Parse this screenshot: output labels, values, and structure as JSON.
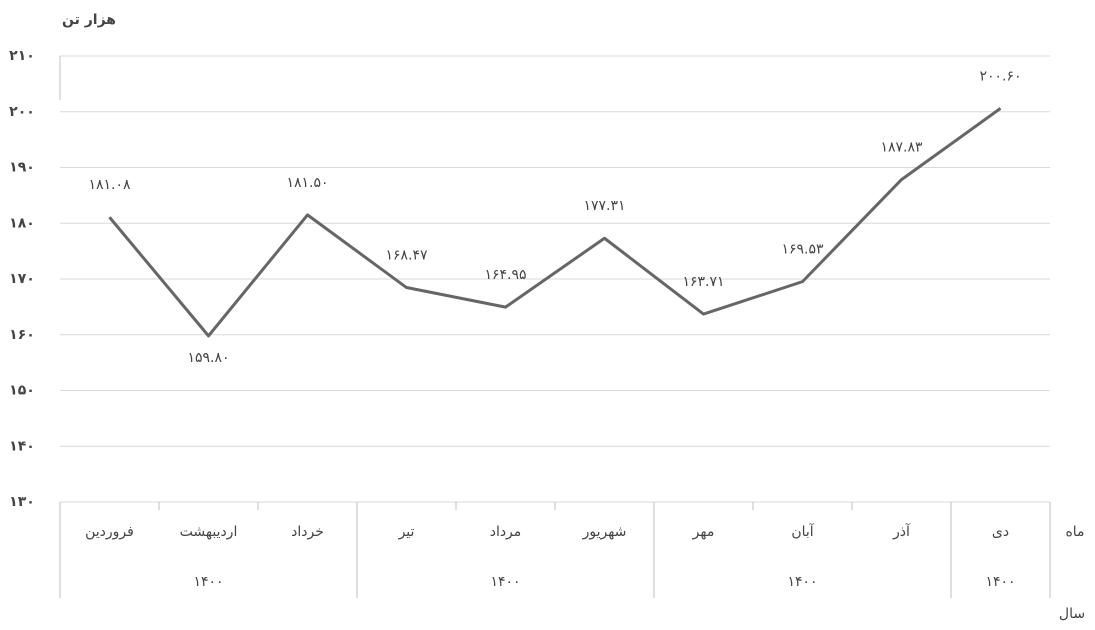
{
  "chart_data": {
    "type": "line",
    "y_axis_label": "هزار تن",
    "x_axis_label": "ماه",
    "group_axis_label": "سال",
    "categories": [
      "فروردین",
      "اردیبهشت",
      "خرداد",
      "تیر",
      "مرداد",
      "شهریور",
      "مهر",
      "آبان",
      "آذر",
      "دی"
    ],
    "groups": [
      {
        "label": "۱۴۰۰",
        "size": 3
      },
      {
        "label": "۱۴۰۰",
        "size": 3
      },
      {
        "label": "۱۴۰۰",
        "size": 3
      },
      {
        "label": "۱۴۰۰",
        "size": 1
      }
    ],
    "series": [
      {
        "color": "#666666",
        "values": [
          181.08,
          159.8,
          181.5,
          168.47,
          164.95,
          177.31,
          163.71,
          169.53,
          187.83,
          200.6
        ],
        "value_labels": [
          "۱۸۱.۰۸",
          "۱۵۹.۸۰",
          "۱۸۱.۵۰",
          "۱۶۸.۴۷",
          "۱۶۴.۹۵",
          "۱۷۷.۳۱",
          "۱۶۳.۷۱",
          "۱۶۹.۵۳",
          "۱۸۷.۸۳",
          "۲۰۰.۶۰"
        ]
      }
    ],
    "ylim": [
      130,
      210
    ],
    "yticks": [
      {
        "value": 130,
        "label": "۱۳۰"
      },
      {
        "value": 140,
        "label": "۱۴۰"
      },
      {
        "value": 150,
        "label": "۱۵۰"
      },
      {
        "value": 160,
        "label": "۱۶۰"
      },
      {
        "value": 170,
        "label": "۱۷۰"
      },
      {
        "value": 180,
        "label": "۱۸۰"
      },
      {
        "value": 190,
        "label": "۱۹۰"
      },
      {
        "value": 200,
        "label": "۲۰۰"
      },
      {
        "value": 210,
        "label": "۲۱۰"
      }
    ],
    "grid": true
  }
}
